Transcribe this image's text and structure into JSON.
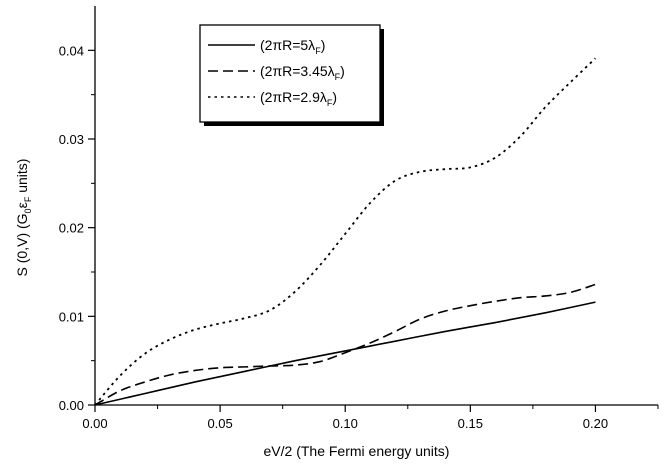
{
  "chart_data": {
    "type": "line",
    "xlabel": "eV/2 (The Fermi energy units)",
    "ylabel": "S (0,V)   (G",
    "ylabel_sub1": "0",
    "ylabel_eps": "ε",
    "ylabel_sub2": "F",
    "ylabel_tail": " units)",
    "xlim": [
      0,
      0.225
    ],
    "ylim": [
      0,
      0.045
    ],
    "x_ticks": [
      0.0,
      0.05,
      0.1,
      0.15,
      0.2
    ],
    "x_tick_labels": [
      "0.00",
      "0.05",
      "0.10",
      "0.15",
      "0.20"
    ],
    "y_ticks": [
      0.0,
      0.01,
      0.02,
      0.03,
      0.04
    ],
    "y_tick_labels": [
      "0.00",
      "0.01",
      "0.02",
      "0.03",
      "0.04"
    ],
    "legend_position": "top-center",
    "series": [
      {
        "name": "(2πR=5λ",
        "name_sub": "F",
        "name_tail": ")",
        "style": "solid",
        "x": [
          0,
          0.02,
          0.04,
          0.06,
          0.08,
          0.1,
          0.12,
          0.14,
          0.16,
          0.18,
          0.2
        ],
        "y": [
          0,
          0.0013,
          0.0026,
          0.0038,
          0.005,
          0.0061,
          0.0072,
          0.0083,
          0.0093,
          0.0104,
          0.0116
        ]
      },
      {
        "name": "(2πR=3.45λ",
        "name_sub": "F",
        "name_tail": ")",
        "style": "dashed",
        "x": [
          0,
          0.01,
          0.02,
          0.03,
          0.04,
          0.05,
          0.06,
          0.07,
          0.08,
          0.09,
          0.1,
          0.11,
          0.12,
          0.13,
          0.14,
          0.15,
          0.16,
          0.17,
          0.18,
          0.19,
          0.2
        ],
        "y": [
          0,
          0.0016,
          0.0026,
          0.0034,
          0.0039,
          0.0042,
          0.0043,
          0.0044,
          0.0045,
          0.0049,
          0.0059,
          0.007,
          0.0083,
          0.0097,
          0.0106,
          0.0112,
          0.0117,
          0.0121,
          0.0123,
          0.0127,
          0.0136
        ]
      },
      {
        "name": "(2πR=2.9λ",
        "name_sub": "F",
        "name_tail": ")",
        "style": "dotted",
        "x": [
          0,
          0.01,
          0.02,
          0.03,
          0.04,
          0.05,
          0.06,
          0.07,
          0.08,
          0.09,
          0.1,
          0.11,
          0.12,
          0.13,
          0.14,
          0.15,
          0.16,
          0.17,
          0.18,
          0.19,
          0.2
        ],
        "y": [
          0,
          0.0033,
          0.0058,
          0.0074,
          0.0085,
          0.0092,
          0.0098,
          0.0107,
          0.0128,
          0.0158,
          0.0193,
          0.0228,
          0.0253,
          0.0263,
          0.0266,
          0.0268,
          0.0279,
          0.0303,
          0.0336,
          0.0364,
          0.0391
        ]
      }
    ]
  }
}
